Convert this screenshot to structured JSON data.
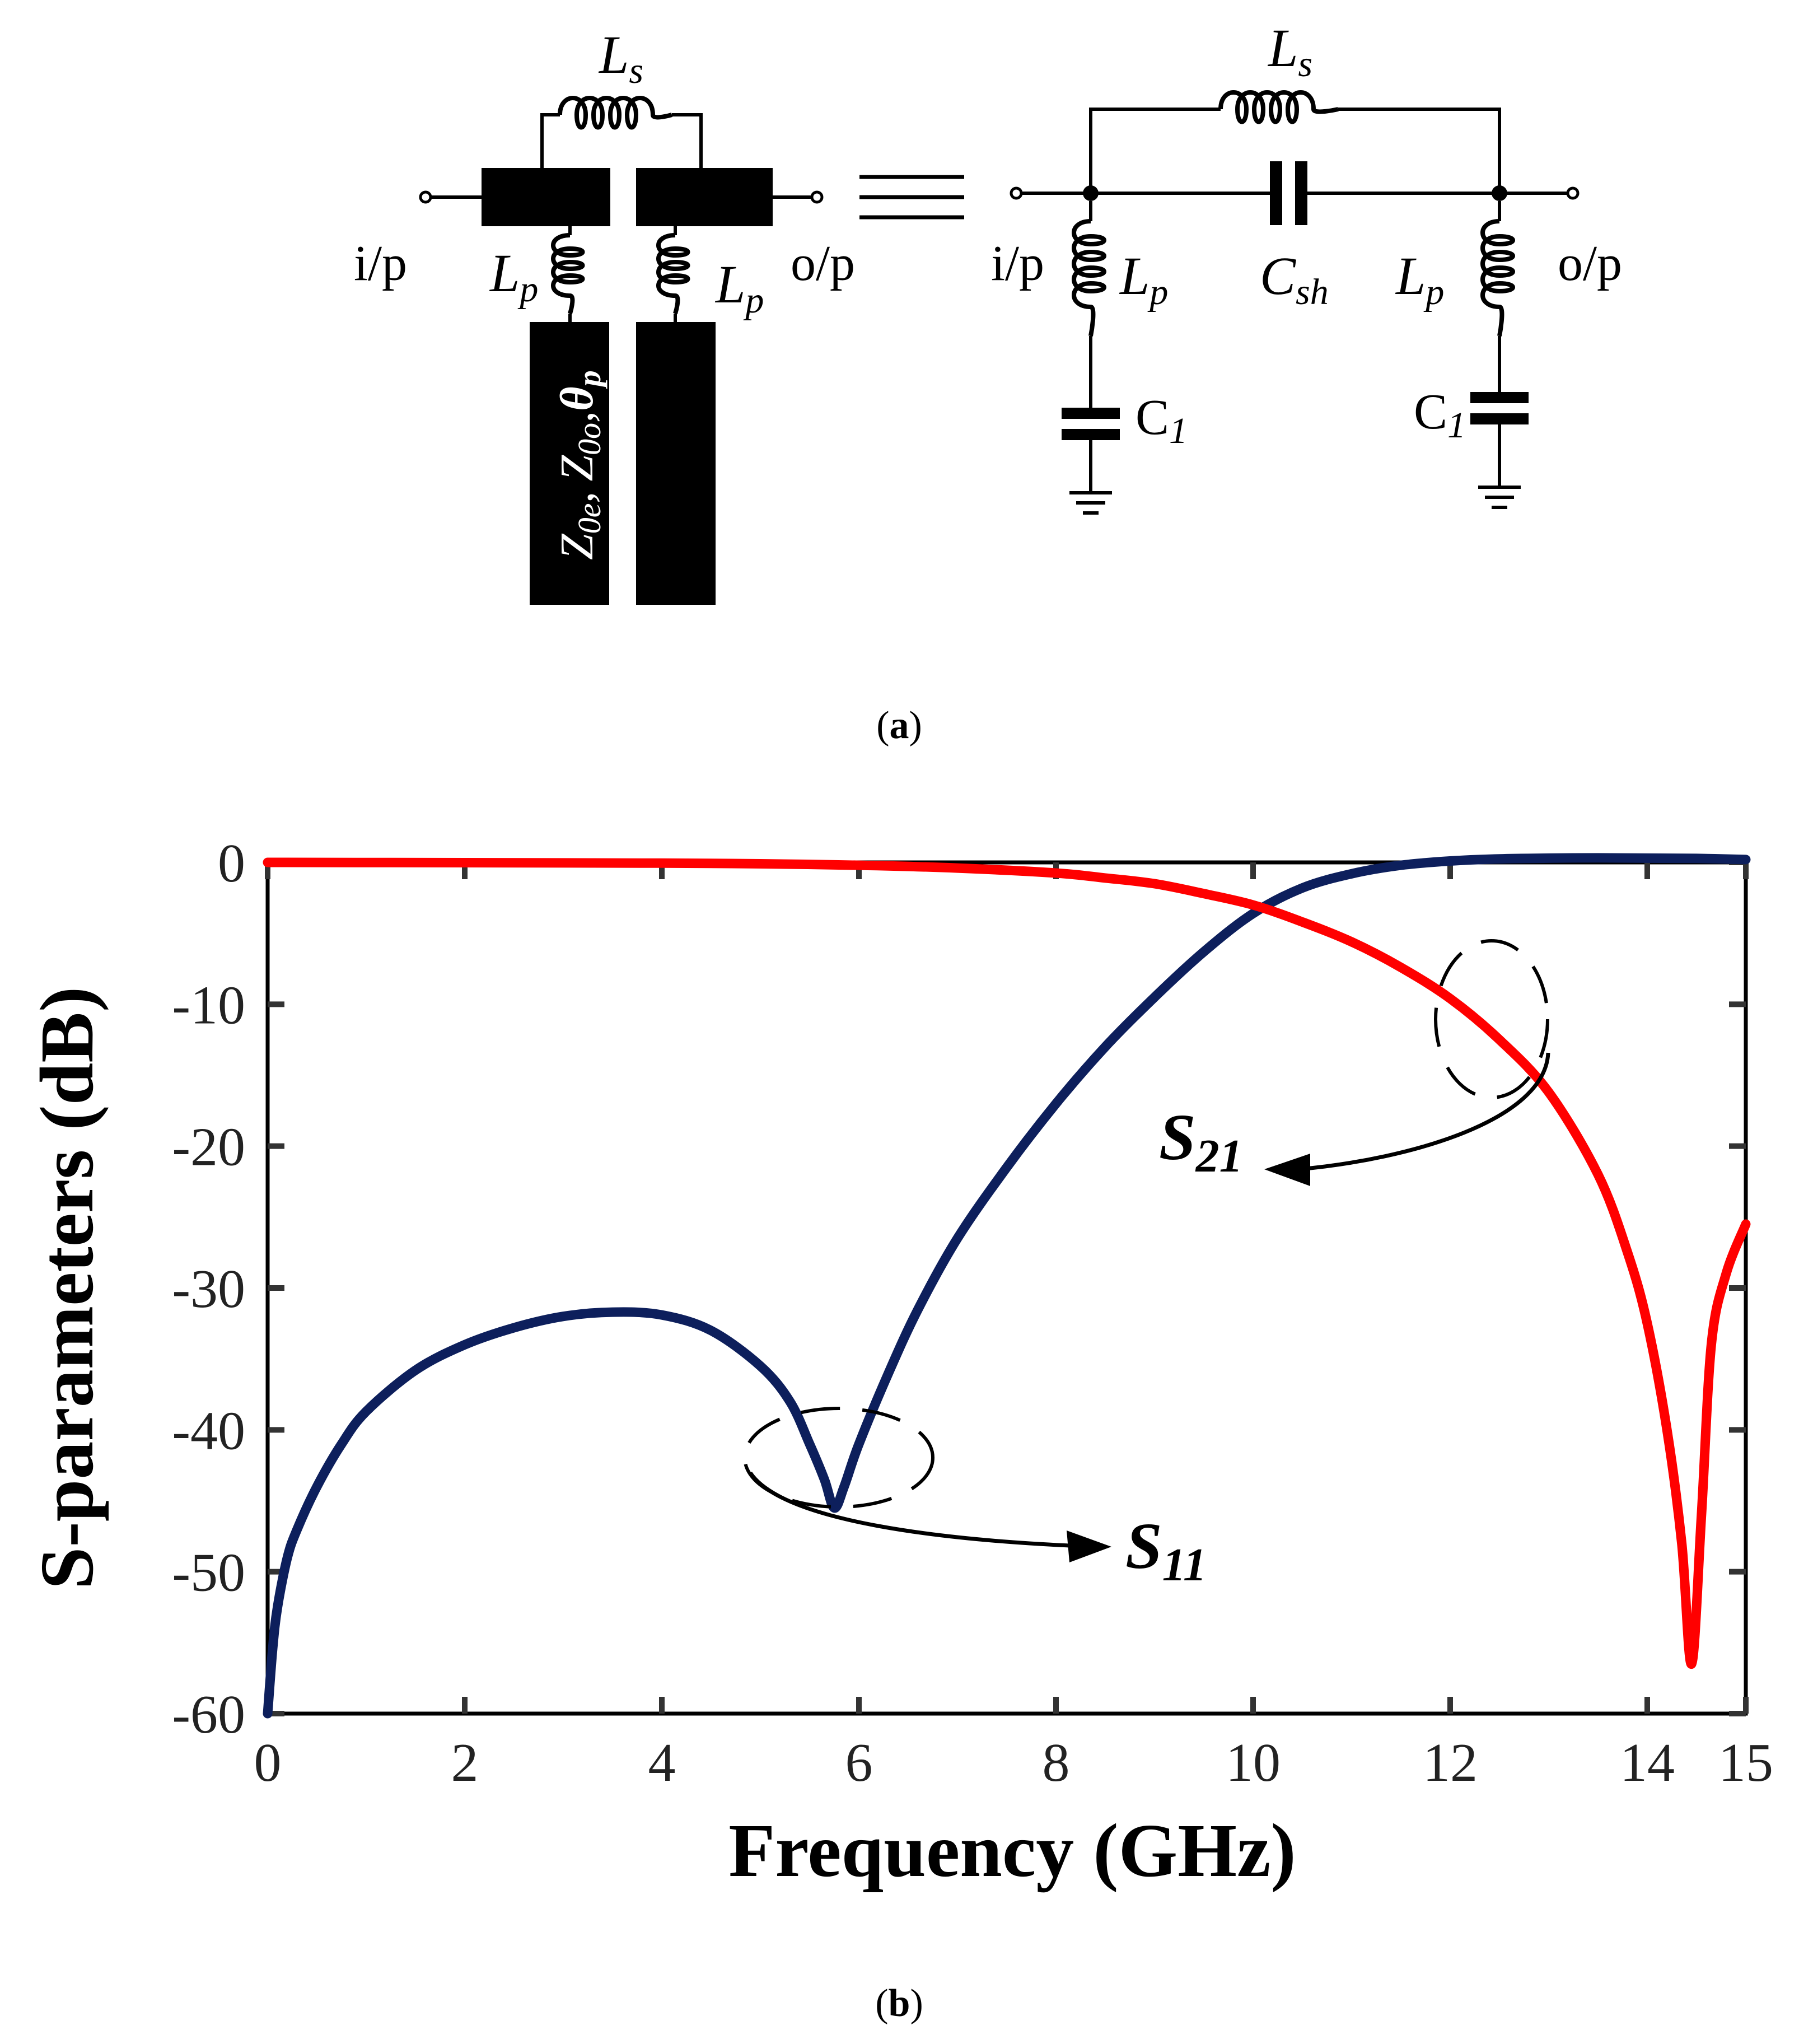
{
  "figure": {
    "part_a": {
      "caption_letter": "a",
      "left_circuit": {
        "top_inductor": "L_s",
        "stub_inductor_left": "L_p",
        "stub_inductor_right": "L_p",
        "port_in": "i/p",
        "port_out": "o/p",
        "coupled_line_params": "Z0e, Z0o, θp"
      },
      "equivalence_symbol": "≡",
      "right_circuit": {
        "top_inductor": "L_s",
        "series_capacitor": "C_sh",
        "shunt_inductor_left": "L_p",
        "shunt_inductor_right": "L_p",
        "shunt_cap_left": "C1",
        "shunt_cap_right": "C1",
        "port_in": "i/p",
        "port_out": "o/p"
      }
    },
    "part_b": {
      "caption_letter": "b"
    }
  },
  "text": {
    "Ls_main": "L",
    "Ls_sub": "s",
    "Lp_main": "L",
    "Lp_sub": "p",
    "Csh_main": "C",
    "Csh_sub": "sh",
    "C1_main": "C",
    "C1_sub": "1",
    "ip": "i/p",
    "op": "o/p",
    "z0e_main": "Z",
    "z0e_sub": "0e",
    "z0o_main": "Z",
    "z0o_sub": "0o",
    "theta_main": "θ",
    "theta_sub": "p",
    "comma": ",",
    "open_paren": "(",
    "close_paren": ")"
  },
  "chart_data": {
    "type": "line",
    "xlabel": "Frequency (GHz)",
    "ylabel": "S-parameters (dB)",
    "xlim": [
      0,
      15
    ],
    "ylim": [
      -60,
      0
    ],
    "xticks": [
      0,
      2,
      4,
      6,
      8,
      10,
      12,
      14,
      15
    ],
    "yticks": [
      0,
      -10,
      -20,
      -30,
      -40,
      -50,
      -60
    ],
    "grid": false,
    "series": [
      {
        "name": "S11",
        "label_main": "S",
        "label_sub": "11",
        "color": "#0d1f5c",
        "x": [
          0.0,
          0.05,
          0.1,
          0.2,
          0.3,
          0.5,
          0.75,
          1.0,
          1.5,
          2.0,
          2.5,
          3.0,
          3.5,
          4.0,
          4.5,
          5.0,
          5.3,
          5.5,
          5.65,
          5.75,
          5.85,
          6.0,
          6.3,
          6.6,
          7.0,
          7.5,
          8.0,
          8.5,
          9.0,
          9.5,
          10.0,
          10.5,
          11.0,
          11.5,
          12.0,
          12.5,
          13.0,
          13.5,
          14.0,
          14.5,
          15.0
        ],
        "values": [
          -60.0,
          -55.5,
          -52.5,
          -49.0,
          -47.0,
          -44.0,
          -41.0,
          -38.7,
          -35.8,
          -34.0,
          -32.8,
          -32.0,
          -31.7,
          -31.9,
          -33.0,
          -35.5,
          -38.0,
          -41.0,
          -43.5,
          -45.5,
          -44.0,
          -41.0,
          -36.0,
          -31.5,
          -26.5,
          -21.5,
          -17.0,
          -13.0,
          -9.5,
          -6.3,
          -3.6,
          -1.8,
          -0.8,
          -0.2,
          0.1,
          0.25,
          0.3,
          0.32,
          0.3,
          0.28,
          0.2
        ]
      },
      {
        "name": "S21",
        "label_main": "S",
        "label_sub": "21",
        "color": "#ff0000",
        "x": [
          0.0,
          2.0,
          4.0,
          5.0,
          6.0,
          7.0,
          8.0,
          8.5,
          9.0,
          9.5,
          10.0,
          10.5,
          11.0,
          11.5,
          12.0,
          12.5,
          13.0,
          13.5,
          13.8,
          14.0,
          14.2,
          14.35,
          14.45,
          14.55,
          14.65,
          14.8,
          15.0
        ],
        "values": [
          0.0,
          -0.02,
          -0.05,
          -0.1,
          -0.2,
          -0.4,
          -0.75,
          -1.1,
          -1.5,
          -2.2,
          -3.0,
          -4.2,
          -5.6,
          -7.4,
          -9.6,
          -12.5,
          -16.2,
          -22.0,
          -27.5,
          -32.5,
          -40.0,
          -48.0,
          -56.5,
          -46.0,
          -34.0,
          -29.0,
          -25.5
        ]
      }
    ]
  }
}
